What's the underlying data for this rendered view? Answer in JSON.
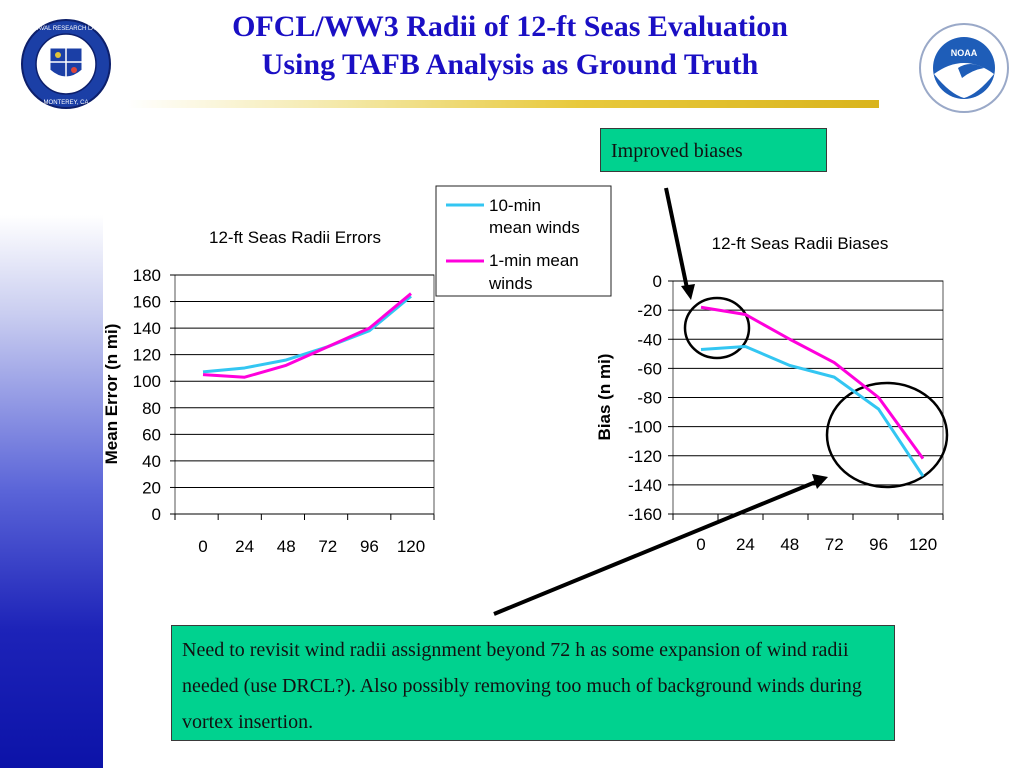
{
  "title": {
    "line1": "OFCL/WW3 Radii of 12-ft Seas Evaluation",
    "line2": "Using TAFB Analysis as Ground Truth"
  },
  "colors": {
    "title": "#1a0fc4",
    "callout_bg": "#00d28f",
    "series_10min": "#33c6f2",
    "series_1min": "#ff00dc"
  },
  "logos": {
    "left": {
      "icon": "naval-research-laboratory-seal",
      "text": "NAVAL RESEARCH LABORATORY · MONTEREY, CA"
    },
    "right": {
      "icon": "noaa-logo",
      "text": "NOAA"
    }
  },
  "legend": {
    "items": [
      {
        "line1": "10-min",
        "line2": "mean winds"
      },
      {
        "line1": "1-min mean",
        "line2": "winds"
      }
    ]
  },
  "callouts": {
    "top": "Improved biases",
    "bottom": "Need to revisit wind radii assignment beyond 72 h as some expansion of wind radii needed (use DRCL?).  Also possibly removing too much of background winds during vortex insertion."
  },
  "chart_data": [
    {
      "type": "line",
      "title": "12-ft Seas Radii Errors",
      "ylabel": "Mean Error (n mi)",
      "xlabel": "",
      "categories": [
        "0",
        "24",
        "48",
        "72",
        "96",
        "120"
      ],
      "ylim": [
        0,
        180
      ],
      "yticks": [
        0,
        20,
        40,
        60,
        80,
        100,
        120,
        140,
        160,
        180
      ],
      "grid": true,
      "series": [
        {
          "name": "10-min mean winds",
          "color": "#33c6f2",
          "values": [
            107,
            110,
            116,
            126,
            138,
            164
          ]
        },
        {
          "name": "1-min mean winds",
          "color": "#ff00dc",
          "values": [
            105,
            103,
            112,
            126,
            140,
            166
          ]
        }
      ]
    },
    {
      "type": "line",
      "title": "12-ft Seas Radii Biases",
      "ylabel": "Bias (n mi)",
      "xlabel": "",
      "categories": [
        "0",
        "24",
        "48",
        "72",
        "96",
        "120"
      ],
      "ylim": [
        -160,
        0
      ],
      "yticks": [
        -160,
        -140,
        -120,
        -100,
        -80,
        -60,
        -40,
        -20,
        0
      ],
      "grid": true,
      "series": [
        {
          "name": "10-min mean winds",
          "color": "#33c6f2",
          "values": [
            -47,
            -45,
            -58,
            -66,
            -88,
            -134
          ]
        },
        {
          "name": "1-min mean winds",
          "color": "#ff00dc",
          "values": [
            -18,
            -23,
            -40,
            -56,
            -80,
            -122
          ]
        }
      ]
    }
  ]
}
